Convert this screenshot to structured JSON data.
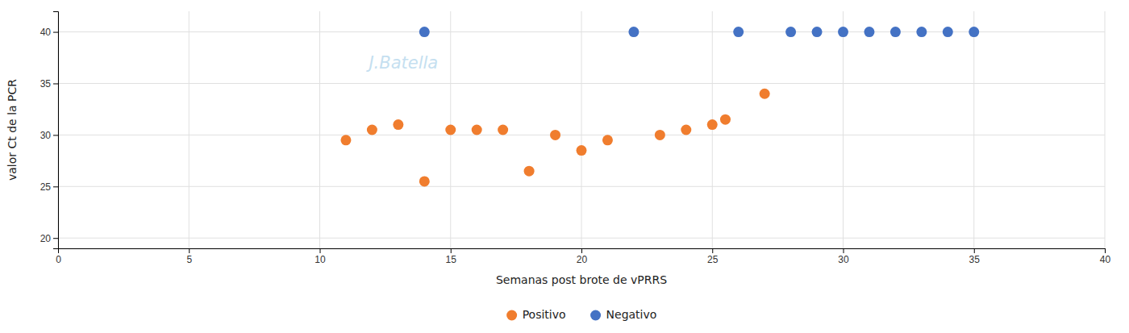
{
  "chart_data": {
    "type": "scatter",
    "xlabel": "Semanas post brote de vPRRS",
    "ylabel": "valor Ct de la PCR",
    "annotations": [
      "J.Batella"
    ],
    "series": [
      {
        "name": "Positivo",
        "color": "#f07d2e",
        "x": [
          11,
          12,
          13,
          14,
          15,
          16,
          17,
          18,
          19,
          20,
          21,
          23,
          24,
          25,
          25.5,
          27
        ],
        "values": [
          29.5,
          30.5,
          31.0,
          25.5,
          30.5,
          30.5,
          30.5,
          26.5,
          30.0,
          28.5,
          29.5,
          30.0,
          30.5,
          31.0,
          31.5,
          34.0
        ]
      },
      {
        "name": "Negativo",
        "color": "#4472c4",
        "x": [
          14,
          22,
          26,
          28,
          29,
          30,
          31,
          32,
          33,
          34,
          35
        ],
        "values": [
          40,
          40,
          40,
          40,
          40,
          40,
          40,
          40,
          40,
          40,
          40
        ]
      }
    ],
    "xlim": [
      0,
      40
    ],
    "ylim": [
      19,
      42
    ],
    "xticks": [
      0,
      5,
      10,
      15,
      20,
      25,
      30,
      35,
      40
    ],
    "yticks": [
      20,
      25,
      30,
      35,
      40
    ],
    "grid": true,
    "legend": "bottom"
  }
}
